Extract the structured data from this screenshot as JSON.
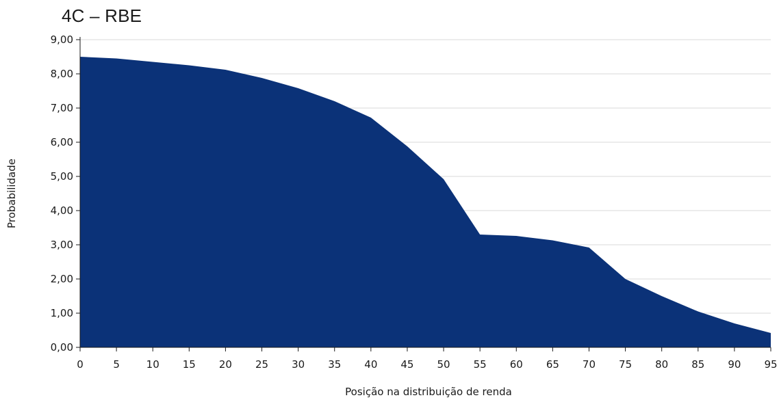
{
  "chart_data": {
    "type": "area",
    "title": "4C – RBE",
    "xlabel": "Posição na distribuição de renda",
    "ylabel": "Probabilidade",
    "x": [
      0,
      5,
      10,
      15,
      20,
      25,
      30,
      35,
      40,
      45,
      50,
      55,
      60,
      65,
      70,
      75,
      80,
      85,
      90,
      95
    ],
    "x_tick_labels": [
      "0",
      "5",
      "10",
      "15",
      "20",
      "25",
      "30",
      "35",
      "40",
      "45",
      "50",
      "55",
      "60",
      "65",
      "70",
      "75",
      "80",
      "85",
      "90",
      "95"
    ],
    "y": [
      8.5,
      8.45,
      8.35,
      8.25,
      8.12,
      7.88,
      7.58,
      7.2,
      6.72,
      5.88,
      4.92,
      3.3,
      3.26,
      3.13,
      2.92,
      2.0,
      1.5,
      1.05,
      0.7,
      0.42
    ],
    "y_tick_labels": [
      "0,00",
      "1,00",
      "2,00",
      "3,00",
      "4,00",
      "5,00",
      "6,00",
      "7,00",
      "8,00",
      "9,00"
    ],
    "ylim": [
      0,
      9
    ],
    "xlim": [
      0,
      95
    ],
    "grid": "horizontal",
    "fill_color": "#0b3278",
    "grid_color": "#d9d9d9",
    "axis_color": "#1a1a1a"
  }
}
